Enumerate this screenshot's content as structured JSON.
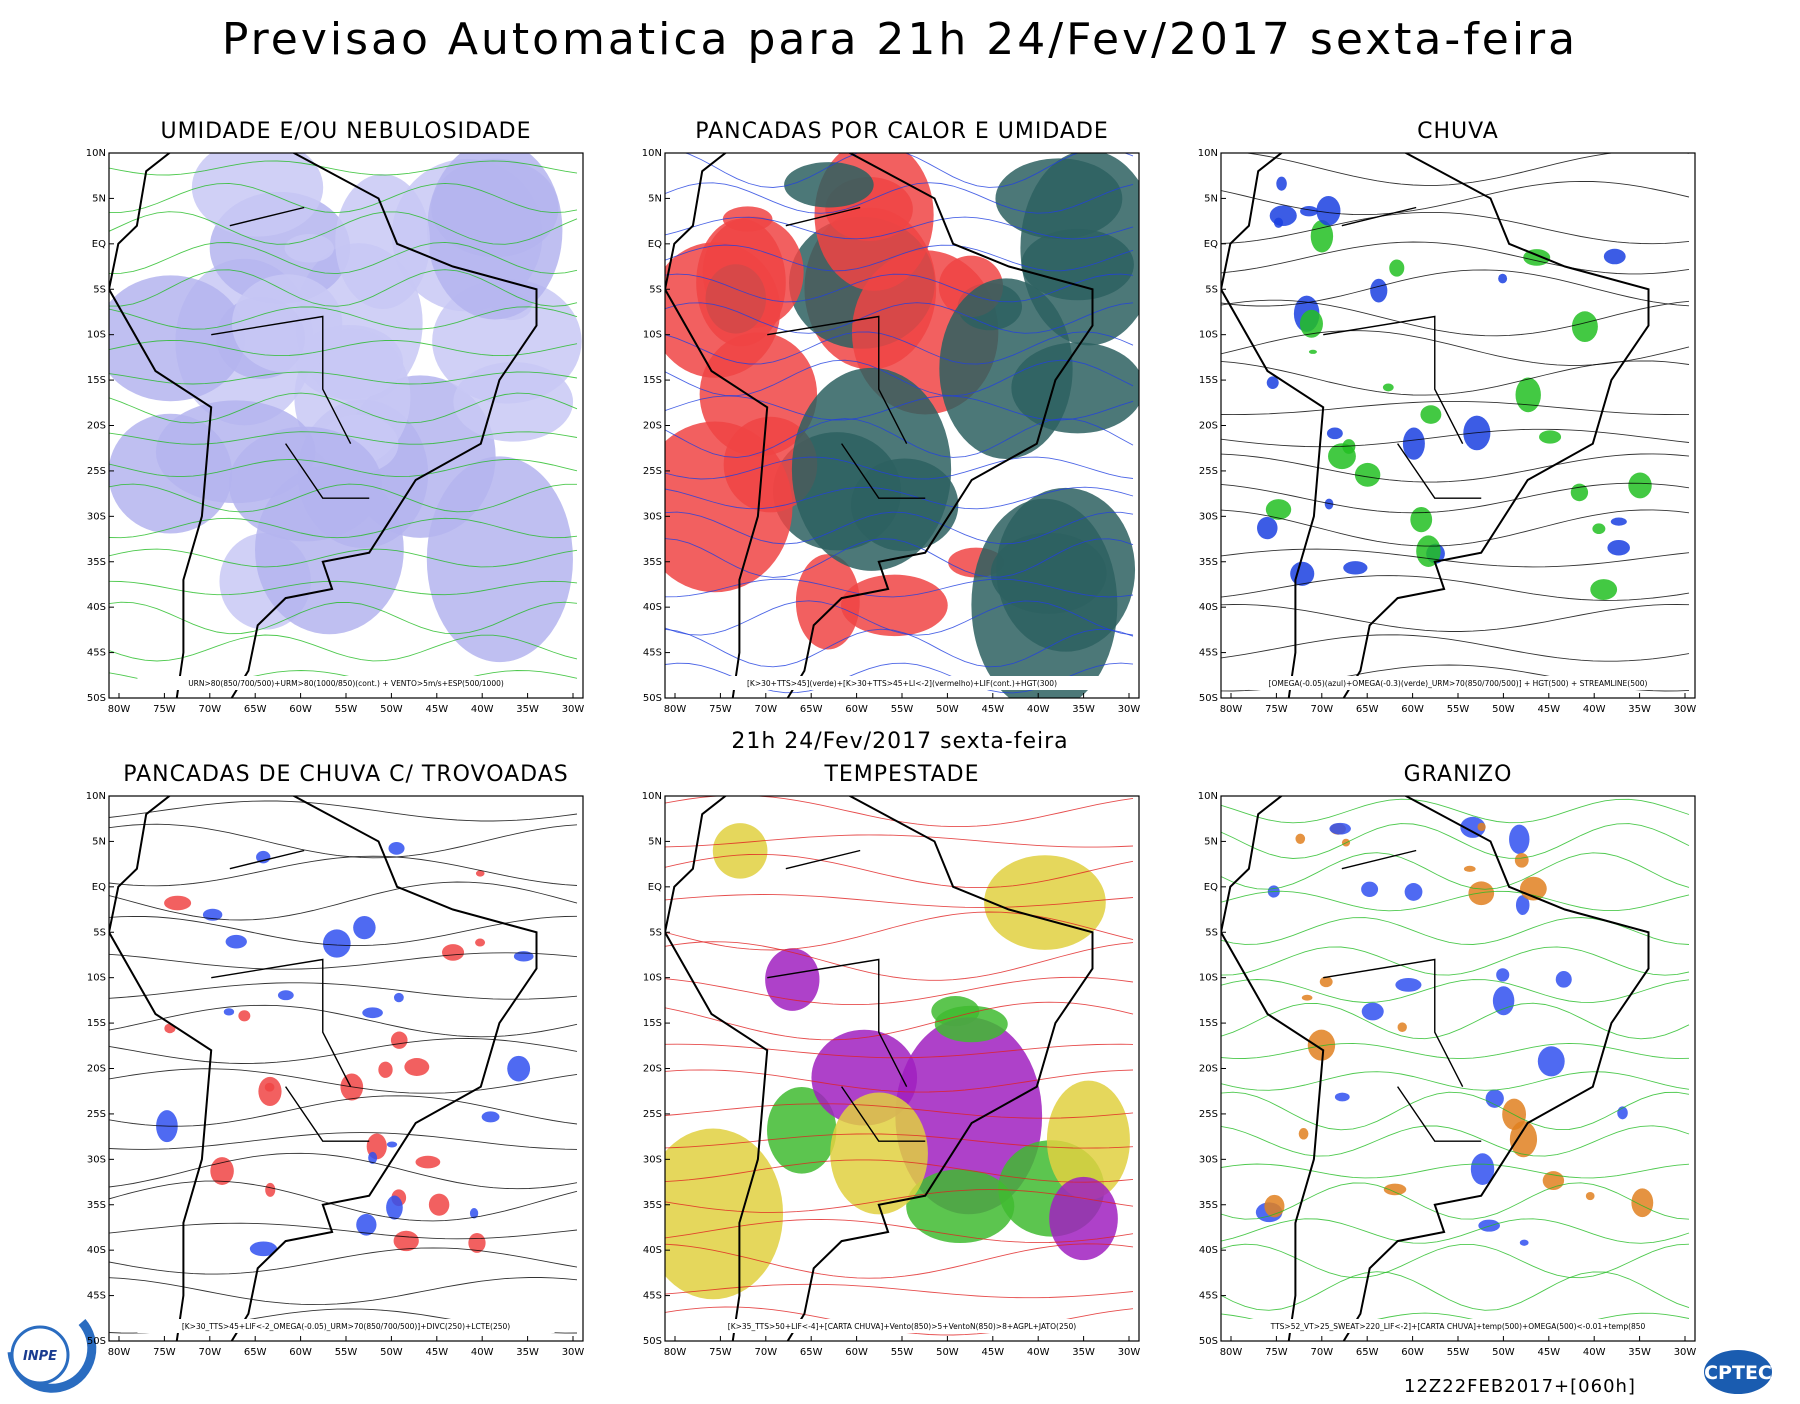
{
  "header": {
    "title": "Previsao Automatica  para 21h 24/Fev/2017 sexta-feira",
    "subtitle": "21h 24/Fev/2017 sexta-feira",
    "run": "12Z22FEB2017+[060h]"
  },
  "axes": {
    "lat_labels": [
      "10N",
      "5N",
      "EQ",
      "5S",
      "10S",
      "15S",
      "20S",
      "25S",
      "30S",
      "35S",
      "40S",
      "45S",
      "50S"
    ],
    "lon_labels": [
      "80W",
      "75W",
      "70W",
      "65W",
      "60W",
      "55W",
      "50W",
      "45W",
      "40W",
      "35W",
      "30W"
    ]
  },
  "panels": [
    {
      "title": "UMIDADE E/OU NEBULOSIDADE",
      "caption": "URN>80(850/700/500)+URM>80(1000/850)(cont.) + VENTO>5m/s+ESP(500/1000)"
    },
    {
      "title": "PANCADAS POR CALOR E UMIDADE",
      "caption": "[K>30+TTS>45](verde)+[K>30+TTS>45+LI<-2](vermelho)+LIF(cont.)+HGT(300)"
    },
    {
      "title": "CHUVA",
      "caption": "[OMEGA(-0.05)(azul)+OMEGA(-0.3)(verde)_URM>70(850/700/500)] + HGT(500) + STREAMLINE(500)"
    },
    {
      "title": "PANCADAS DE CHUVA C/ TROVOADAS",
      "caption": "[K>30_TTS>45+LIF<-2_OMEGA(-0.05)_URM>70(850/700/500)]+DIVC(250)+LCTE(250)"
    },
    {
      "title": "TEMPESTADE",
      "caption": "[K>35_TTS>50+LIF<-4]+[CARTA CHUVA]+Vento(850)>5+VentoN(850)>8+AGPL+JATO(250)"
    },
    {
      "title": "GRANIZO",
      "caption": "TTS>52_VT>25_SWEAT>220_LIF<-2]+[CARTA CHUVA]+temp(500)+OMEGA(500)<-0.01+temp(850"
    }
  ],
  "logos": {
    "left": "INPE",
    "right": "CPTEC"
  }
}
